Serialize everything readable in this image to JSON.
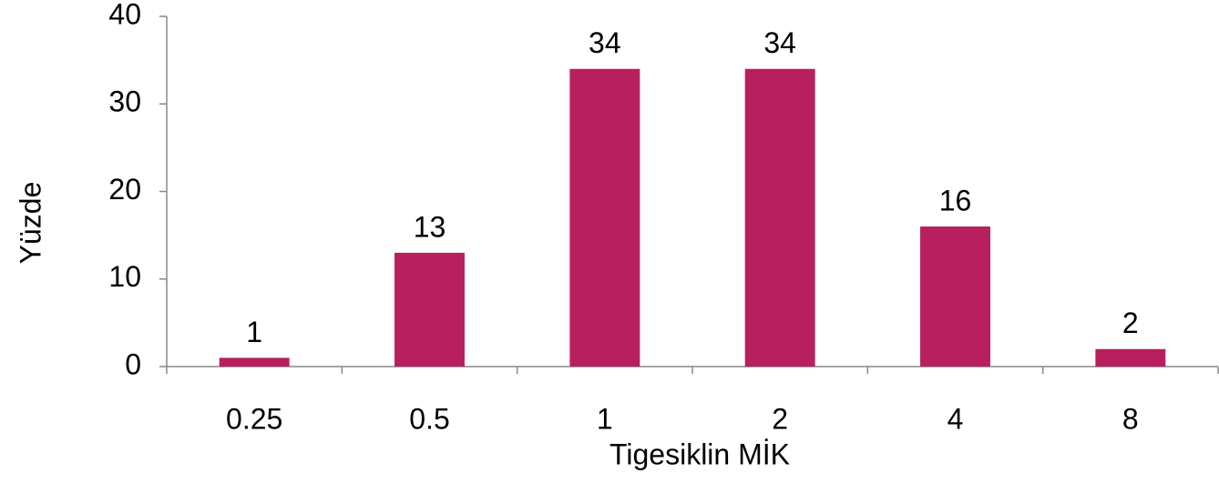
{
  "chart_data": {
    "type": "bar",
    "x_label": "Tigesiklin MİK",
    "y_label": "Yüzde",
    "categories": [
      "0.25",
      "0.5",
      "1",
      "2",
      "4",
      "8"
    ],
    "values": [
      1,
      13,
      34,
      34,
      16,
      2
    ],
    "color": "#b81f5e",
    "ylim": [
      0,
      40
    ],
    "yticks": [
      0,
      10,
      20,
      30,
      40
    ],
    "grid": false,
    "data_labels": true
  }
}
